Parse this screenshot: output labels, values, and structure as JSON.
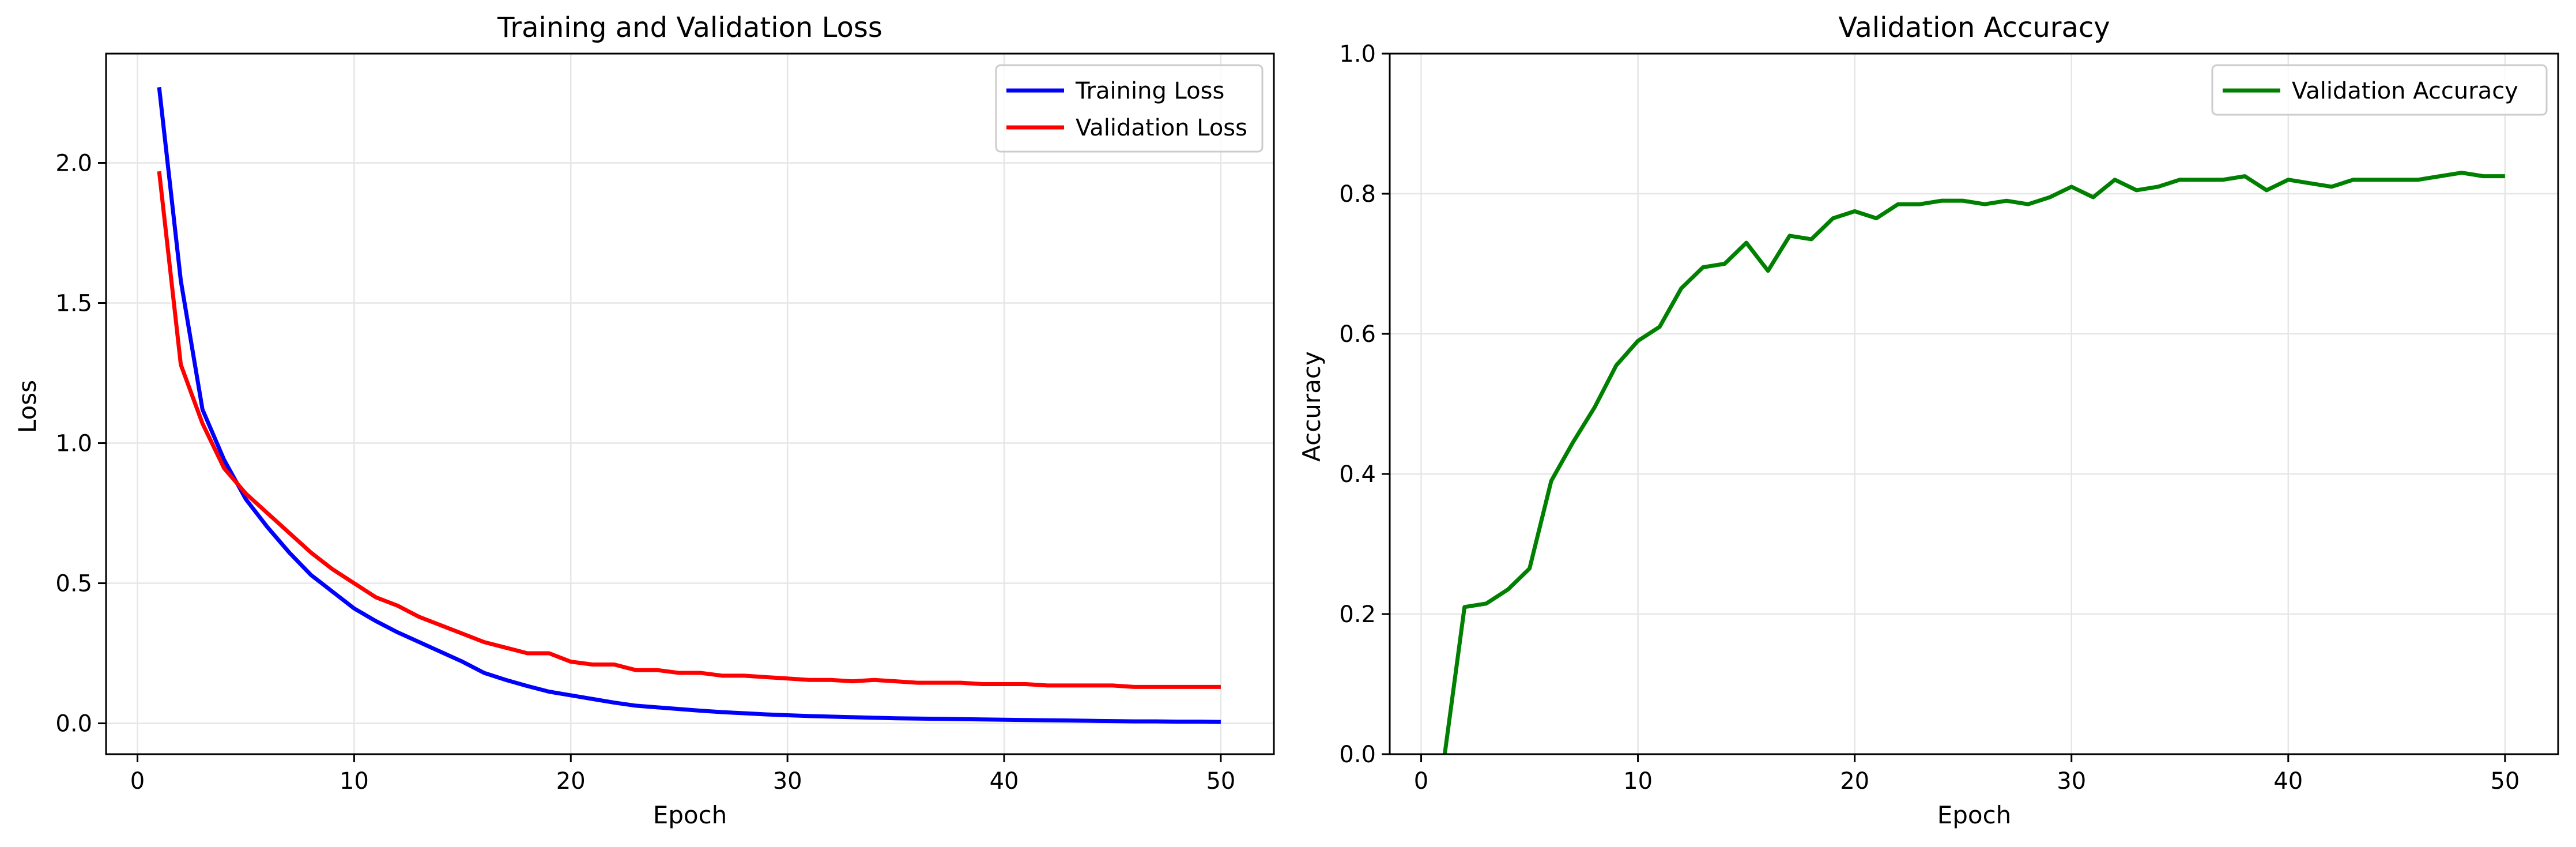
{
  "chart_data": [
    {
      "type": "line",
      "title": "Training and Validation Loss",
      "xlabel": "Epoch",
      "ylabel": "Loss",
      "xlim": [
        -1.45,
        52.45
      ],
      "ylim": [
        -0.11,
        2.39
      ],
      "xticks": [
        0,
        10,
        20,
        30,
        40,
        50
      ],
      "yticks": [
        0.0,
        0.5,
        1.0,
        1.5,
        2.0
      ],
      "ytick_labels": [
        "0.0",
        "0.5",
        "1.0",
        "1.5",
        "2.0"
      ],
      "grid": true,
      "legend_position": "top-right",
      "x": [
        1,
        2,
        3,
        4,
        5,
        6,
        7,
        8,
        9,
        10,
        11,
        12,
        13,
        14,
        15,
        16,
        17,
        18,
        19,
        20,
        21,
        22,
        23,
        24,
        25,
        26,
        27,
        28,
        29,
        30,
        31,
        32,
        33,
        34,
        35,
        36,
        37,
        38,
        39,
        40,
        41,
        42,
        43,
        44,
        45,
        46,
        47,
        48,
        49,
        50
      ],
      "series": [
        {
          "name": "Training Loss",
          "color": "#0000ff",
          "values": [
            2.27,
            1.58,
            1.12,
            0.94,
            0.8,
            0.7,
            0.61,
            0.53,
            0.47,
            0.41,
            0.365,
            0.325,
            0.29,
            0.255,
            0.22,
            0.18,
            0.155,
            0.133,
            0.113,
            0.1,
            0.087,
            0.074,
            0.063,
            0.057,
            0.051,
            0.045,
            0.04,
            0.036,
            0.032,
            0.029,
            0.026,
            0.024,
            0.022,
            0.02,
            0.018,
            0.017,
            0.016,
            0.015,
            0.014,
            0.013,
            0.012,
            0.011,
            0.01,
            0.009,
            0.008,
            0.007,
            0.007,
            0.006,
            0.006,
            0.005
          ]
        },
        {
          "name": "Validation Loss",
          "color": "#ff0000",
          "values": [
            1.97,
            1.28,
            1.07,
            0.91,
            0.82,
            0.75,
            0.68,
            0.61,
            0.55,
            0.5,
            0.45,
            0.42,
            0.38,
            0.35,
            0.32,
            0.29,
            0.27,
            0.25,
            0.25,
            0.22,
            0.21,
            0.21,
            0.19,
            0.19,
            0.18,
            0.18,
            0.17,
            0.17,
            0.165,
            0.16,
            0.155,
            0.155,
            0.15,
            0.155,
            0.15,
            0.145,
            0.145,
            0.145,
            0.14,
            0.14,
            0.14,
            0.135,
            0.135,
            0.135,
            0.135,
            0.13,
            0.13,
            0.13,
            0.13,
            0.13
          ]
        }
      ]
    },
    {
      "type": "line",
      "title": "Validation Accuracy",
      "xlabel": "Epoch",
      "ylabel": "Accuracy",
      "xlim": [
        -1.45,
        52.45
      ],
      "ylim": [
        0.0,
        1.0
      ],
      "xticks": [
        0,
        10,
        20,
        30,
        40,
        50
      ],
      "yticks": [
        0.0,
        0.2,
        0.4,
        0.6,
        0.8,
        1.0
      ],
      "ytick_labels": [
        "0.0",
        "0.2",
        "0.4",
        "0.6",
        "0.8",
        "1.0"
      ],
      "grid": true,
      "legend_position": "top-right",
      "x": [
        1,
        2,
        3,
        4,
        5,
        6,
        7,
        8,
        9,
        10,
        11,
        12,
        13,
        14,
        15,
        16,
        17,
        18,
        19,
        20,
        21,
        22,
        23,
        24,
        25,
        26,
        27,
        28,
        29,
        30,
        31,
        32,
        33,
        34,
        35,
        36,
        37,
        38,
        39,
        40,
        41,
        42,
        43,
        44,
        45,
        46,
        47,
        48,
        49,
        50
      ],
      "series": [
        {
          "name": "Validation Accuracy",
          "color": "#008000",
          "values": [
            -0.02,
            0.21,
            0.215,
            0.235,
            0.265,
            0.39,
            0.445,
            0.495,
            0.555,
            0.59,
            0.61,
            0.665,
            0.695,
            0.7,
            0.73,
            0.69,
            0.74,
            0.735,
            0.765,
            0.775,
            0.765,
            0.785,
            0.785,
            0.79,
            0.79,
            0.785,
            0.79,
            0.785,
            0.795,
            0.81,
            0.795,
            0.82,
            0.805,
            0.81,
            0.82,
            0.82,
            0.82,
            0.825,
            0.805,
            0.82,
            0.815,
            0.81,
            0.82,
            0.82,
            0.82,
            0.82,
            0.825,
            0.83,
            0.825,
            0.825
          ]
        }
      ]
    }
  ]
}
